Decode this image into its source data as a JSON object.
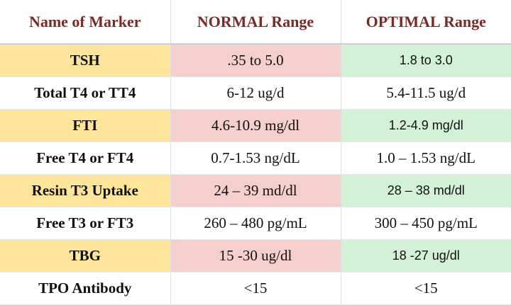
{
  "table": {
    "header": [
      "Name of Marker",
      "NORMAL Range",
      "OPTIMAL Range"
    ],
    "rows": [
      [
        "TSH",
        ".35 to 5.0",
        "1.8 to 3.0"
      ],
      [
        "Total T4 or TT4",
        "6-12 ug/d",
        "5.4-11.5 ug/d"
      ],
      [
        "FTI",
        "4.6-10.9 mg/dl",
        "1.2-4.9 mg/dl"
      ],
      [
        "Free T4 or FT4",
        "0.7-1.53 ng/dL",
        "1.0 – 1.53 ng/dL"
      ],
      [
        "Resin T3 Uptake",
        "24 – 39 md/dl",
        "28 – 38 md/dl"
      ],
      [
        "Free T3 or FT3",
        "260 – 480 pg/mL",
        "300 – 450 pg/mL"
      ],
      [
        "TBG",
        "15 -30 ug/dl",
        "18 -27 ug/dl"
      ],
      [
        "TPO Antibody",
        "<15",
        "<15"
      ]
    ]
  }
}
